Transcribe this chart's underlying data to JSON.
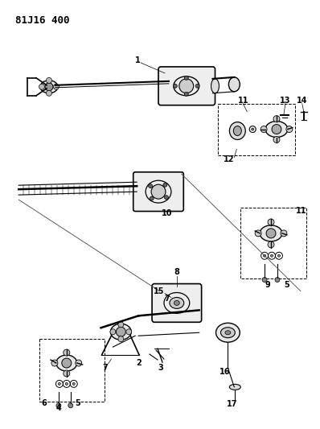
{
  "title": "81J16 400",
  "bg_color": "#ffffff",
  "line_color": "#000000",
  "title_fontsize": 9,
  "label_fontsize": 7,
  "figsize": [
    3.98,
    5.33
  ],
  "dpi": 100
}
